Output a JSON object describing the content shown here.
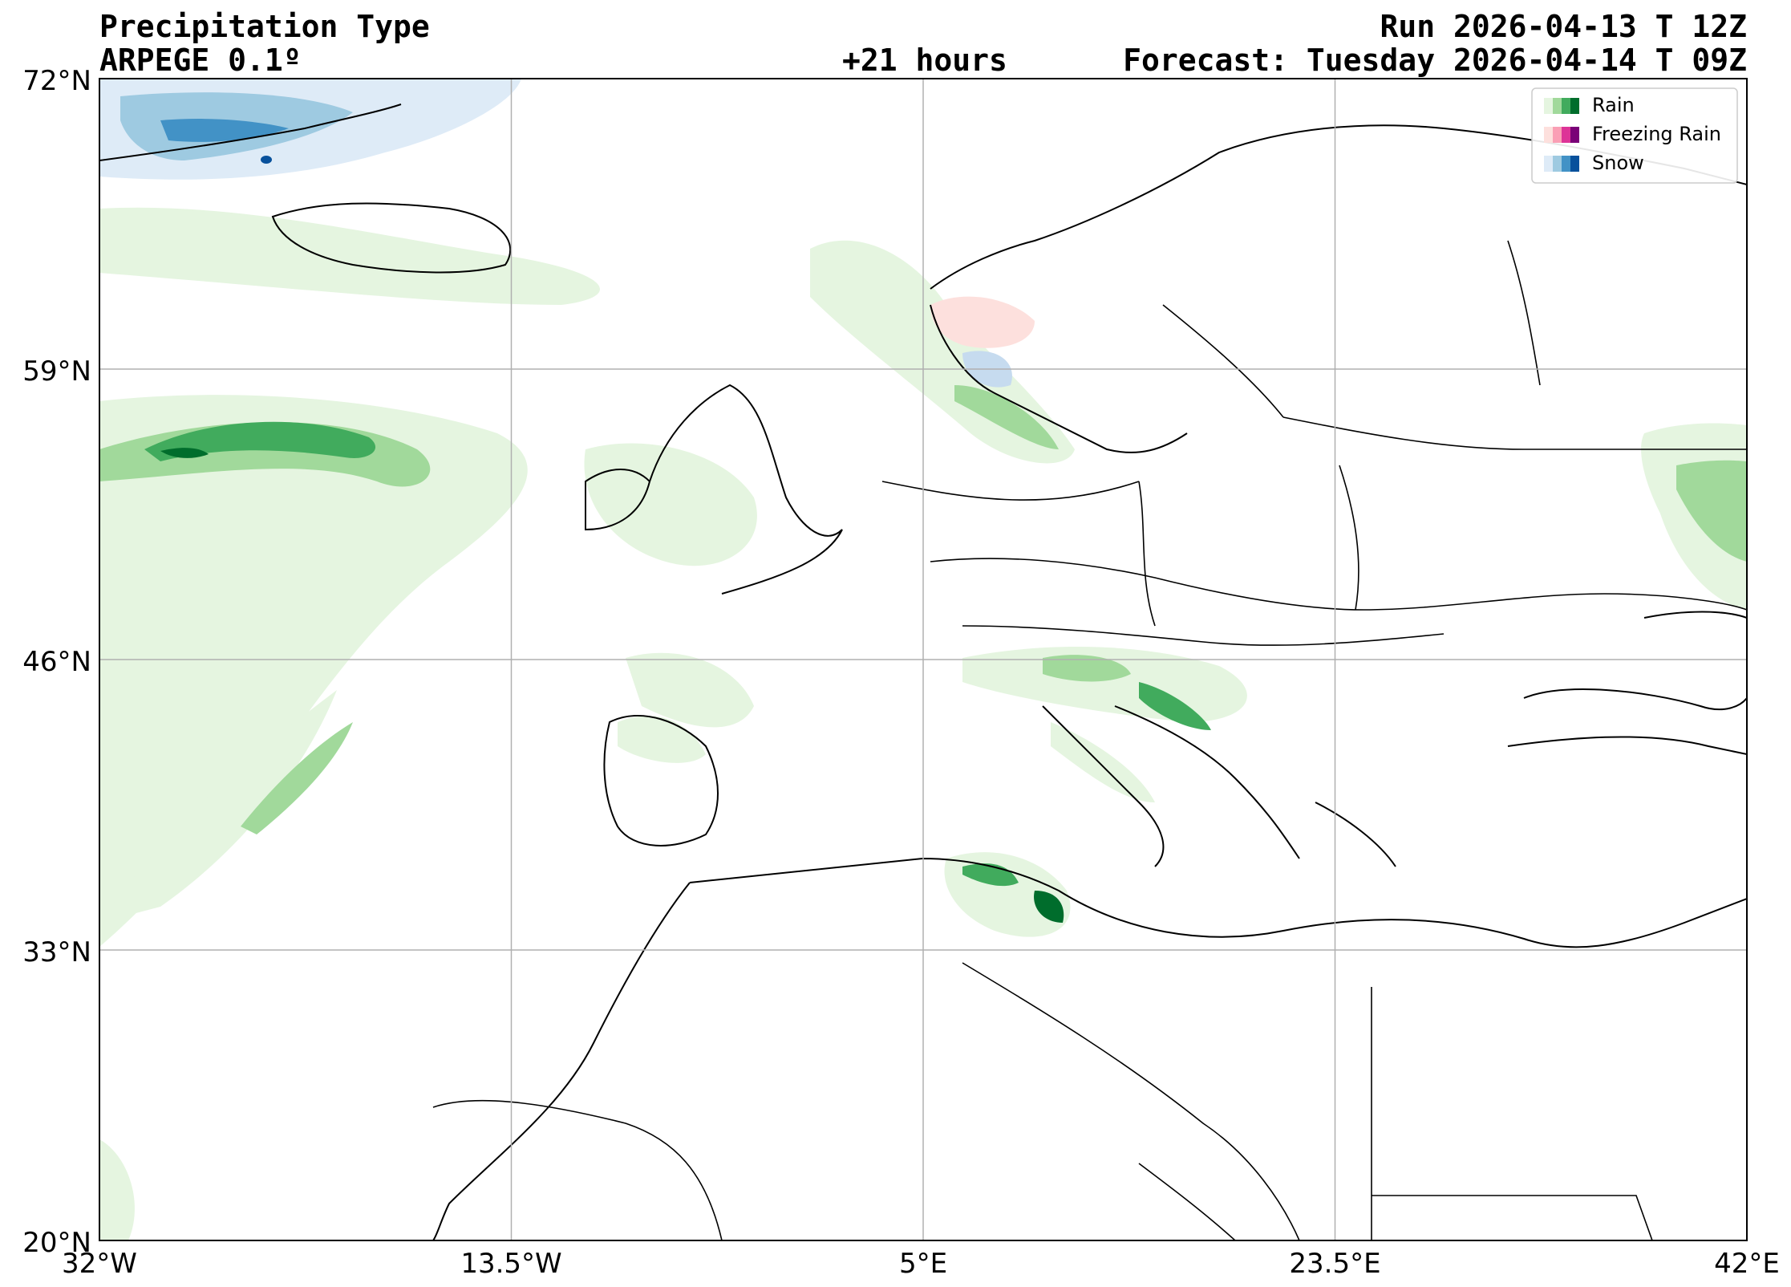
{
  "header": {
    "title": "Precipitation Type",
    "model": "ARPEGE 0.1º",
    "run": "Run 2026-04-13 T 12Z",
    "lead": "+21 hours",
    "forecast": "Forecast: Tuesday 2026-04-14 T 09Z"
  },
  "map": {
    "extent": {
      "lon_min": -32,
      "lon_max": 42,
      "lat_min": 20,
      "lat_max": 72
    },
    "lat_ticks": [
      {
        "value": 72,
        "label": "72°N"
      },
      {
        "value": 59,
        "label": "59°N"
      },
      {
        "value": 46,
        "label": "46°N"
      },
      {
        "value": 33,
        "label": "33°N"
      },
      {
        "value": 20,
        "label": "20°N"
      }
    ],
    "lon_ticks": [
      {
        "value": -32,
        "label": "32°W"
      },
      {
        "value": -13.5,
        "label": "13.5°W"
      },
      {
        "value": 5,
        "label": "5°E"
      },
      {
        "value": 23.5,
        "label": "23.5°E"
      },
      {
        "value": 42,
        "label": "42°E"
      }
    ],
    "grid": true
  },
  "legend": {
    "placement": "top-right",
    "entries": [
      {
        "label": "Rain",
        "colors": [
          "#e5f5e0",
          "#a1d99b",
          "#41ab5d",
          "#006d2c"
        ]
      },
      {
        "label": "Freezing Rain",
        "colors": [
          "#fde0dd",
          "#fa9fb5",
          "#dd3497",
          "#7a0177"
        ]
      },
      {
        "label": "Snow",
        "colors": [
          "#deebf7",
          "#9ecae1",
          "#4292c6",
          "#08519c"
        ]
      }
    ]
  }
}
